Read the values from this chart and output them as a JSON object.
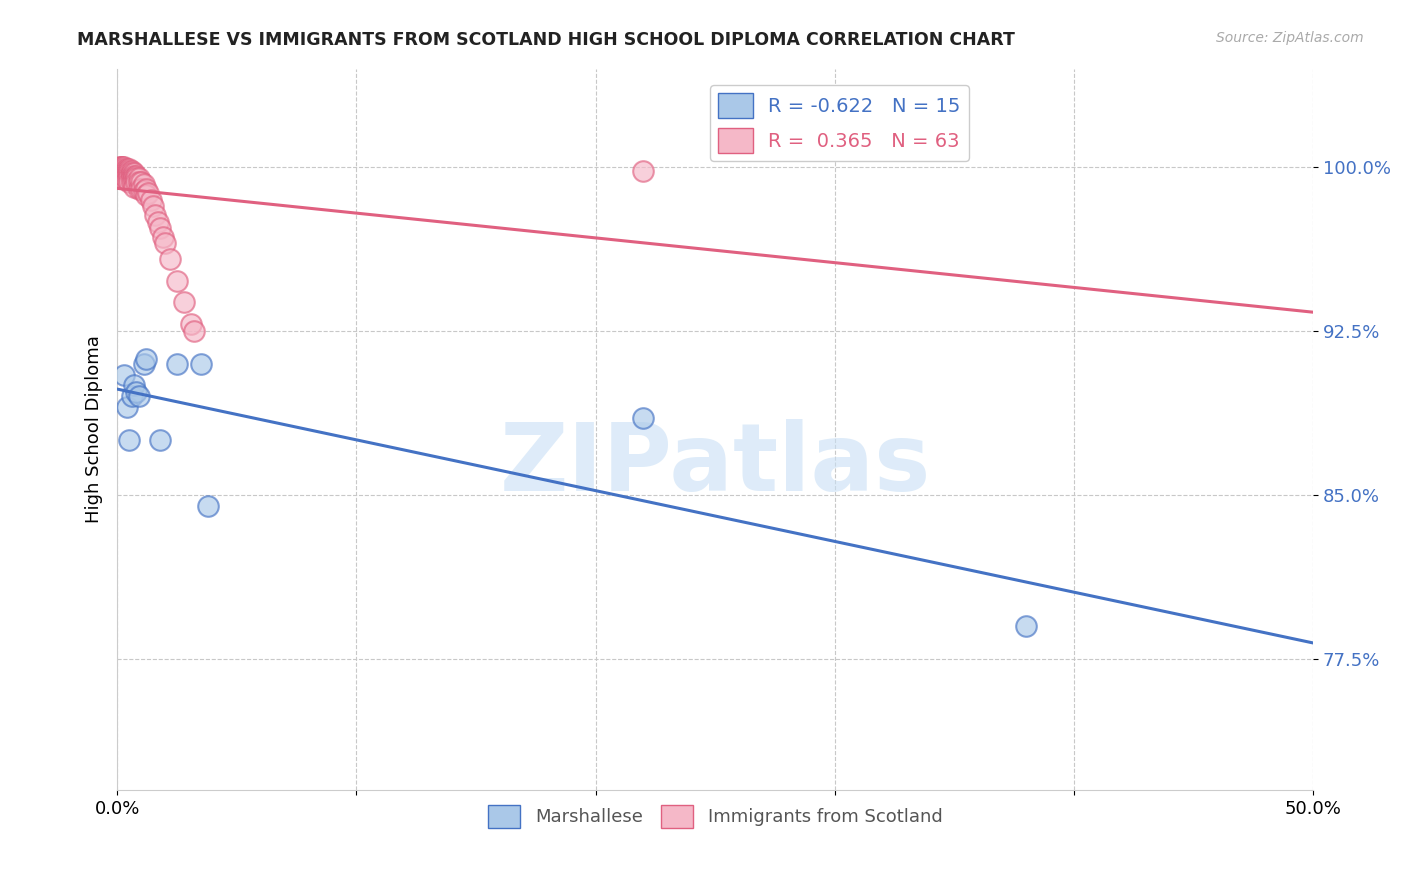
{
  "title": "MARSHALLESE VS IMMIGRANTS FROM SCOTLAND HIGH SCHOOL DIPLOMA CORRELATION CHART",
  "source": "Source: ZipAtlas.com",
  "ylabel": "High School Diploma",
  "ytick_labels": [
    "77.5%",
    "85.0%",
    "92.5%",
    "100.0%"
  ],
  "ytick_values": [
    0.775,
    0.85,
    0.925,
    1.0
  ],
  "xlim": [
    0.0,
    0.5
  ],
  "ylim": [
    0.715,
    1.045
  ],
  "legend_r_blue": "-0.622",
  "legend_n_blue": 15,
  "legend_r_pink": "0.365",
  "legend_n_pink": 63,
  "blue_marker_color": "#aac8e8",
  "pink_marker_color": "#f5b8c8",
  "blue_line_color": "#4472c4",
  "pink_line_color": "#e06080",
  "blue_x": [
    0.003,
    0.004,
    0.005,
    0.006,
    0.007,
    0.008,
    0.009,
    0.011,
    0.012,
    0.018,
    0.025,
    0.035,
    0.038,
    0.22,
    0.38
  ],
  "blue_y": [
    0.905,
    0.89,
    0.875,
    0.895,
    0.9,
    0.897,
    0.895,
    0.91,
    0.912,
    0.875,
    0.91,
    0.91,
    0.845,
    0.885,
    0.79
  ],
  "pink_x": [
    0.001,
    0.001,
    0.001,
    0.001,
    0.001,
    0.002,
    0.002,
    0.002,
    0.002,
    0.002,
    0.002,
    0.003,
    0.003,
    0.003,
    0.003,
    0.003,
    0.004,
    0.004,
    0.004,
    0.004,
    0.004,
    0.005,
    0.005,
    0.005,
    0.005,
    0.005,
    0.005,
    0.006,
    0.006,
    0.006,
    0.006,
    0.006,
    0.007,
    0.007,
    0.007,
    0.007,
    0.007,
    0.008,
    0.008,
    0.008,
    0.009,
    0.009,
    0.009,
    0.01,
    0.01,
    0.011,
    0.011,
    0.012,
    0.012,
    0.013,
    0.014,
    0.015,
    0.016,
    0.017,
    0.018,
    0.019,
    0.02,
    0.022,
    0.025,
    0.028,
    0.031,
    0.032,
    0.22
  ],
  "pink_y": [
    1.0,
    1.0,
    0.999,
    0.998,
    0.996,
    1.0,
    1.0,
    0.999,
    0.998,
    0.997,
    0.995,
    1.0,
    0.999,
    0.998,
    0.997,
    0.996,
    0.999,
    0.998,
    0.997,
    0.996,
    0.994,
    0.999,
    0.998,
    0.997,
    0.996,
    0.995,
    0.993,
    0.998,
    0.997,
    0.996,
    0.995,
    0.993,
    0.997,
    0.996,
    0.995,
    0.993,
    0.991,
    0.996,
    0.995,
    0.993,
    0.995,
    0.993,
    0.99,
    0.993,
    0.99,
    0.992,
    0.989,
    0.99,
    0.987,
    0.988,
    0.985,
    0.982,
    0.978,
    0.975,
    0.972,
    0.968,
    0.965,
    0.958,
    0.948,
    0.938,
    0.928,
    0.925,
    0.998
  ],
  "watermark_text": "ZIPatlas",
  "watermark_color": "#c8dff5",
  "watermark_alpha": 0.6
}
